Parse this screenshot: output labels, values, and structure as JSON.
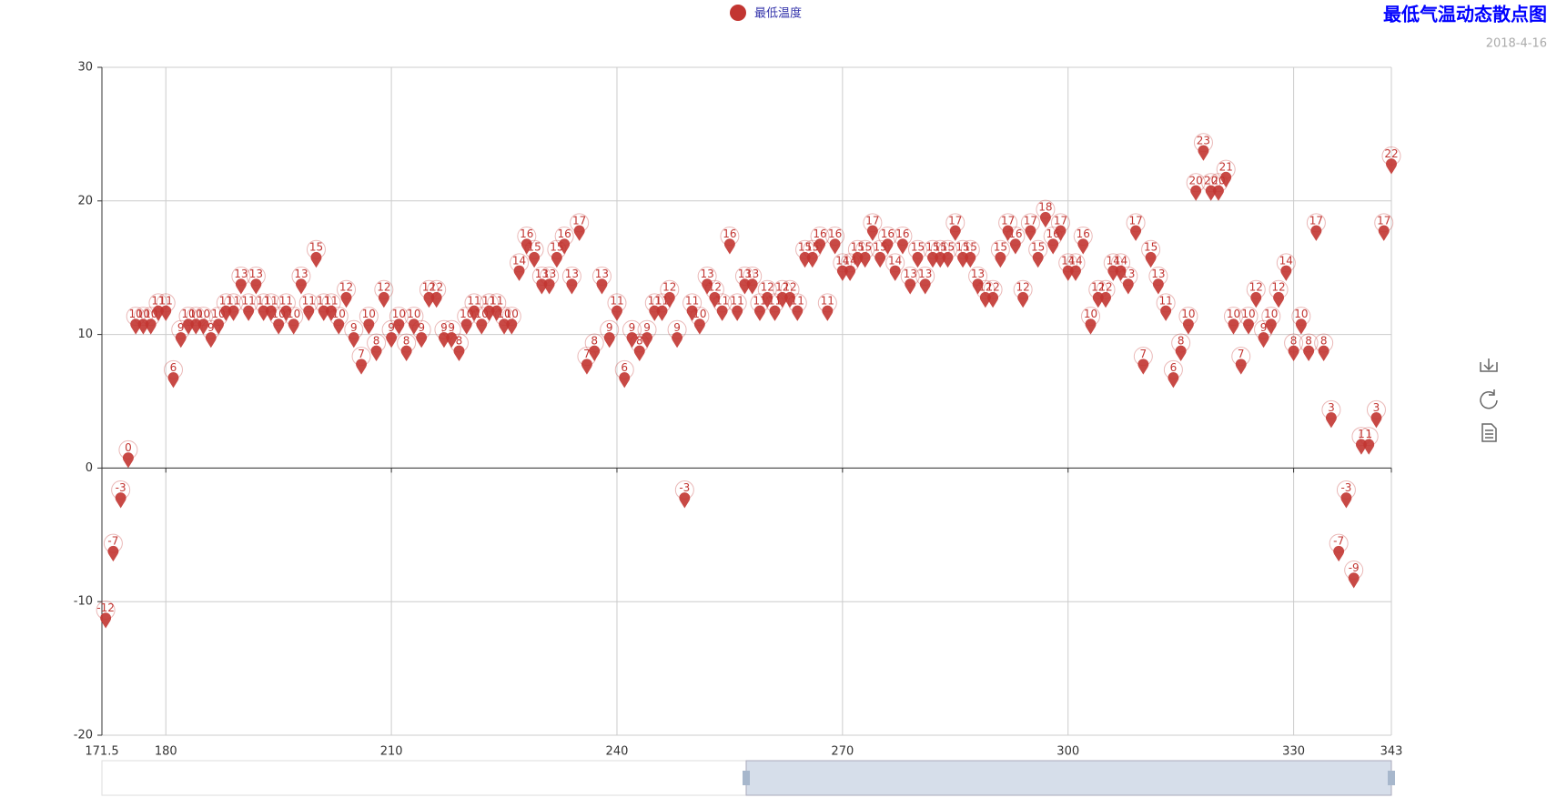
{
  "chart_data": {
    "type": "scatter",
    "title": "最低气温动态散点图",
    "subtitle": "2018-4-16",
    "x": [
      172,
      173,
      174,
      175,
      176,
      177,
      178,
      179,
      180,
      181,
      182,
      183,
      184,
      185,
      186,
      187,
      188,
      189,
      190,
      191,
      192,
      193,
      194,
      195,
      196,
      197,
      198,
      199,
      200,
      201,
      202,
      203,
      204,
      205,
      206,
      207,
      208,
      209,
      210,
      211,
      212,
      213,
      214,
      215,
      216,
      217,
      218,
      219,
      220,
      221,
      222,
      223,
      224,
      225,
      226,
      227,
      228,
      229,
      230,
      231,
      232,
      233,
      234,
      235,
      236,
      237,
      238,
      239,
      240,
      241,
      242,
      243,
      244,
      245,
      246,
      247,
      248,
      249,
      250,
      251,
      252,
      253,
      254,
      255,
      256,
      257,
      258,
      259,
      260,
      261,
      262,
      263,
      264,
      265,
      266,
      267,
      268,
      269,
      270,
      271,
      272,
      273,
      274,
      275,
      276,
      277,
      278,
      279,
      280,
      281,
      282,
      283,
      284,
      285,
      286,
      287,
      288,
      289,
      290,
      291,
      292,
      293,
      294,
      295,
      296,
      297,
      298,
      299,
      300,
      301,
      302,
      303,
      304,
      305,
      306,
      307,
      308,
      309,
      310,
      311,
      312,
      313,
      314,
      315,
      316,
      317,
      318,
      319,
      320,
      321,
      322,
      323,
      324,
      325,
      326,
      327,
      328,
      329,
      330,
      331,
      332,
      333,
      334,
      335,
      336,
      337,
      338,
      339,
      340,
      341,
      342,
      343
    ],
    "series": [
      {
        "name": "最低温度",
        "color": "#c23531",
        "values": [
          -12,
          -7,
          -3,
          0,
          10,
          10,
          10,
          11,
          11,
          6,
          9,
          10,
          10,
          10,
          9,
          10,
          11,
          11,
          13,
          11,
          13,
          11,
          11,
          10,
          11,
          10,
          13,
          11,
          15,
          11,
          11,
          10,
          12,
          9,
          7,
          10,
          8,
          12,
          9,
          10,
          8,
          10,
          9,
          12,
          12,
          9,
          9,
          8,
          10,
          11,
          10,
          11,
          11,
          10,
          10,
          14,
          16,
          15,
          13,
          13,
          15,
          16,
          13,
          17,
          7,
          8,
          13,
          9,
          11,
          6,
          9,
          8,
          9,
          11,
          11,
          12,
          9,
          -3,
          11,
          10,
          13,
          12,
          11,
          16,
          11,
          13,
          13,
          11,
          12,
          11,
          12,
          12,
          11,
          15,
          15,
          16,
          11,
          16,
          14,
          14,
          15,
          15,
          17,
          15,
          16,
          14,
          16,
          13,
          15,
          13,
          15,
          15,
          15,
          17,
          15,
          15,
          13,
          12,
          12,
          15,
          17,
          16,
          12,
          17,
          15,
          18,
          16,
          17,
          14,
          14,
          16,
          10,
          12,
          12,
          14,
          14,
          13,
          17,
          7,
          15,
          13,
          11,
          6,
          8,
          10,
          20,
          23,
          20,
          20,
          21,
          10,
          7,
          10,
          12,
          9,
          10,
          12,
          14,
          8,
          10,
          8,
          17,
          8,
          3,
          -7,
          -3,
          -9,
          1,
          1,
          3,
          17,
          22
        ]
      }
    ],
    "xlim": [
      171.5,
      343
    ],
    "xticks": [
      171.5,
      180,
      210,
      240,
      270,
      300,
      330,
      343
    ],
    "ylim": [
      -20,
      30
    ],
    "yticks": [
      -20,
      -10,
      0,
      10,
      20,
      30
    ],
    "grid": true
  }
}
